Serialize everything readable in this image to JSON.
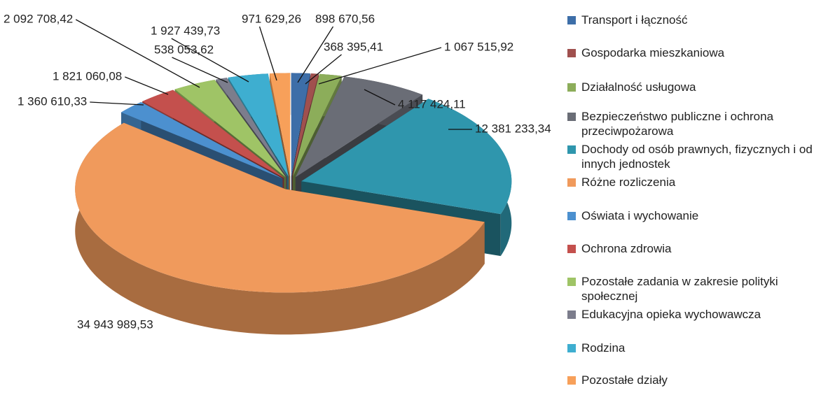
{
  "chart_data": {
    "type": "pie3d",
    "categories": [
      "Transport i łączność",
      "Gospodarka mieszkaniowa",
      "Działalność usługowa",
      "Bezpieczeństwo publiczne i ochrona przeciwpożarowa",
      "Dochody od osób prawnych, fizycznych i od innych jednostek",
      "Różne rozliczenia",
      "Oświata i wychowanie",
      "Ochrona zdrowia",
      "Pozostałe zadania w zakresie polityki społecznej",
      "Edukacyjna opieka wychowawcza",
      "Rodzina",
      "Pozostałe działy"
    ],
    "values": [
      898670.56,
      368395.41,
      1067515.92,
      4117424.11,
      12381233.34,
      34943989.53,
      1360610.33,
      1821060.08,
      2092708.42,
      538053.62,
      1927439.73,
      971629.26
    ],
    "value_labels": [
      "898 670,56",
      "368 395,41",
      "1 067 515,92",
      "4 117 424,11",
      "12 381 233,34",
      "34 943 989,53",
      "1 360 610,33",
      "1 821 060,08",
      "2 092 708,42",
      "538 053,62",
      "1 927 439,73",
      "971 629,26"
    ],
    "colors": [
      "#3d6ea8",
      "#a0504e",
      "#8cad5a",
      "#6a6d76",
      "#2f96ad",
      "#f09a5c",
      "#4c90cf",
      "#c4504d",
      "#9fc466",
      "#7c7d8c",
      "#3eaed0",
      "#f7a05a"
    ],
    "legend": "right"
  }
}
